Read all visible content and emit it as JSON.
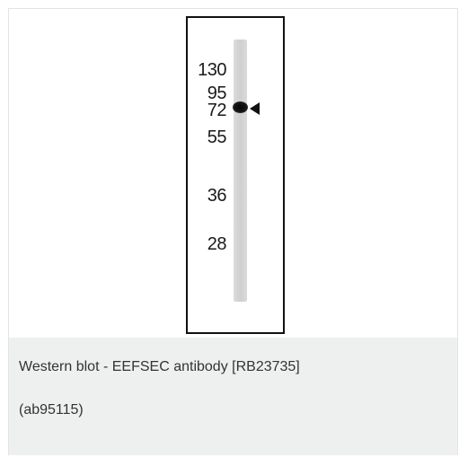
{
  "blot": {
    "markers": [
      "130",
      "95",
      "72",
      "55",
      "36",
      "28"
    ]
  },
  "caption": {
    "line1": "Western blot - EEFSEC antibody [RB23735]",
    "line2": "(ab95115)"
  }
}
